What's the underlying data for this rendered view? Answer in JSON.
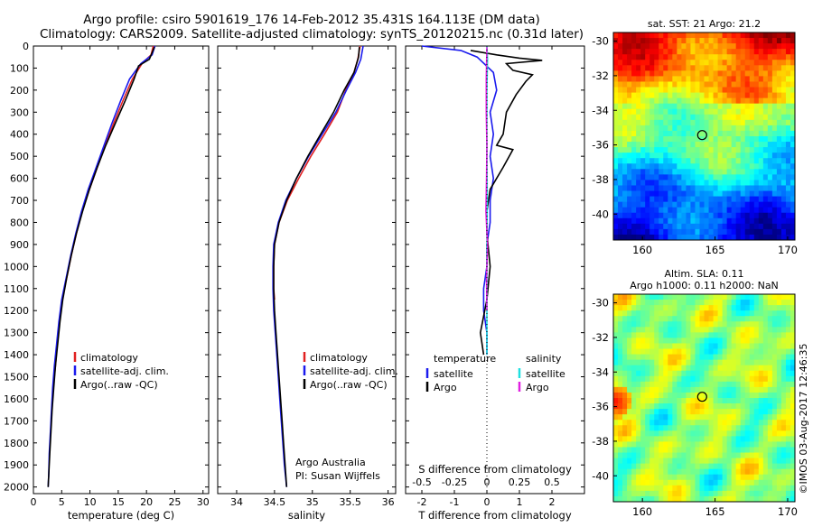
{
  "header": {
    "line1": "Argo profile: csiro 5901619_176 14-Feb-2012 35.431S 164.113E (DM data)",
    "line2": "Climatology: CARS2009. Satellite-adjusted climatology: synTS_20120215.nc (0.31d later)"
  },
  "side_text": "©IMOS 03-Aug-2017 12:46:35",
  "colors": {
    "climatology": "#e02020",
    "satellite": "#1a1aee",
    "argo": "#000000",
    "cyan": "#20e0e0",
    "magenta": "#e020e0"
  },
  "chart_data": [
    {
      "type": "line",
      "id": "temperature",
      "xlabel": "temperature (deg C)",
      "xlim": [
        0,
        31
      ],
      "xticks": [
        0,
        5,
        10,
        15,
        20,
        25,
        30
      ],
      "ylim": [
        0,
        2030
      ],
      "yticks": [
        0,
        100,
        200,
        300,
        400,
        500,
        600,
        700,
        800,
        900,
        1000,
        1100,
        1200,
        1300,
        1400,
        1500,
        1600,
        1700,
        1800,
        1900,
        2000
      ],
      "legend": [
        "climatology",
        "satellite-adj. clim.",
        "Argo(..raw -QC)"
      ],
      "series": [
        {
          "name": "climatology",
          "color": "#e02020",
          "points": [
            [
              21.2,
              0
            ],
            [
              20.8,
              40
            ],
            [
              19.2,
              80
            ],
            [
              17.5,
              150
            ],
            [
              15.8,
              250
            ],
            [
              14.2,
              350
            ],
            [
              12.7,
              450
            ],
            [
              11.3,
              550
            ],
            [
              9.9,
              650
            ],
            [
              8.6,
              750
            ],
            [
              7.6,
              850
            ],
            [
              6.7,
              950
            ],
            [
              5.9,
              1050
            ],
            [
              5.1,
              1150
            ],
            [
              4.6,
              1250
            ],
            [
              4.2,
              1350
            ],
            [
              3.9,
              1450
            ],
            [
              3.5,
              1550
            ]
          ]
        },
        {
          "name": "satellite-adj. clim.",
          "color": "#1a1aee",
          "points": [
            [
              21.5,
              0
            ],
            [
              21.0,
              40
            ],
            [
              19.0,
              80
            ],
            [
              17.0,
              150
            ],
            [
              15.4,
              250
            ],
            [
              13.9,
              350
            ],
            [
              12.5,
              450
            ],
            [
              11.1,
              550
            ],
            [
              9.7,
              650
            ],
            [
              8.5,
              750
            ],
            [
              7.5,
              850
            ],
            [
              6.6,
              950
            ],
            [
              5.8,
              1050
            ],
            [
              5.0,
              1150
            ],
            [
              4.5,
              1250
            ],
            [
              4.1,
              1350
            ],
            [
              3.7,
              1450
            ],
            [
              3.4,
              1550
            ],
            [
              3.2,
              1650
            ],
            [
              3.0,
              1750
            ],
            [
              2.8,
              1850
            ],
            [
              2.7,
              1950
            ],
            [
              2.6,
              2000
            ]
          ]
        },
        {
          "name": "Argo(..raw -QC)",
          "color": "#000000",
          "points": [
            [
              21.4,
              5
            ],
            [
              21.0,
              30
            ],
            [
              20.5,
              60
            ],
            [
              18.6,
              90
            ],
            [
              17.8,
              150
            ],
            [
              16.2,
              250
            ],
            [
              14.5,
              350
            ],
            [
              12.8,
              450
            ],
            [
              11.3,
              550
            ],
            [
              9.9,
              650
            ],
            [
              8.7,
              750
            ],
            [
              7.6,
              850
            ],
            [
              6.7,
              950
            ],
            [
              5.9,
              1050
            ],
            [
              5.2,
              1150
            ],
            [
              4.7,
              1250
            ],
            [
              4.3,
              1350
            ],
            [
              3.9,
              1450
            ],
            [
              3.6,
              1550
            ],
            [
              3.3,
              1650
            ],
            [
              3.1,
              1750
            ],
            [
              2.9,
              1850
            ],
            [
              2.7,
              1950
            ],
            [
              2.6,
              2000
            ]
          ]
        }
      ]
    },
    {
      "type": "line",
      "id": "salinity",
      "xlabel": "salinity",
      "xlim": [
        33.75,
        36.1
      ],
      "xticks": [
        34,
        34.5,
        35,
        35.5,
        36
      ],
      "ylim": [
        0,
        2030
      ],
      "legend": [
        "climatology",
        "satellite-adj. clim.",
        "Argo(..raw -QC)"
      ],
      "annotation": [
        "Argo Australia",
        "PI: Susan Wijffels"
      ],
      "series": [
        {
          "name": "climatology",
          "color": "#e02020",
          "points": [
            [
              35.63,
              0
            ],
            [
              35.6,
              60
            ],
            [
              35.55,
              120
            ],
            [
              35.44,
              200
            ],
            [
              35.33,
              300
            ],
            [
              35.16,
              400
            ],
            [
              34.98,
              500
            ],
            [
              34.82,
              600
            ],
            [
              34.67,
              700
            ],
            [
              34.56,
              800
            ],
            [
              34.5,
              900
            ],
            [
              34.49,
              1000
            ],
            [
              34.49,
              1100
            ],
            [
              34.5,
              1150
            ]
          ]
        },
        {
          "name": "satellite-adj. clim.",
          "color": "#1a1aee",
          "points": [
            [
              35.67,
              0
            ],
            [
              35.64,
              60
            ],
            [
              35.57,
              120
            ],
            [
              35.45,
              200
            ],
            [
              35.31,
              300
            ],
            [
              35.13,
              400
            ],
            [
              34.95,
              500
            ],
            [
              34.79,
              600
            ],
            [
              34.65,
              700
            ],
            [
              34.55,
              800
            ],
            [
              34.49,
              900
            ],
            [
              34.48,
              1000
            ],
            [
              34.48,
              1100
            ],
            [
              34.49,
              1200
            ],
            [
              34.51,
              1300
            ],
            [
              34.53,
              1400
            ],
            [
              34.55,
              1500
            ],
            [
              34.57,
              1600
            ],
            [
              34.59,
              1700
            ],
            [
              34.61,
              1800
            ],
            [
              34.63,
              1900
            ],
            [
              34.66,
              2000
            ]
          ]
        },
        {
          "name": "Argo(..raw -QC)",
          "color": "#000000",
          "points": [
            [
              35.62,
              5
            ],
            [
              35.61,
              50
            ],
            [
              35.55,
              120
            ],
            [
              35.42,
              200
            ],
            [
              35.28,
              300
            ],
            [
              35.11,
              400
            ],
            [
              34.94,
              500
            ],
            [
              34.79,
              600
            ],
            [
              34.66,
              700
            ],
            [
              34.56,
              800
            ],
            [
              34.5,
              900
            ],
            [
              34.49,
              1000
            ],
            [
              34.49,
              1100
            ],
            [
              34.5,
              1200
            ],
            [
              34.52,
              1300
            ],
            [
              34.54,
              1400
            ],
            [
              34.56,
              1500
            ],
            [
              34.58,
              1600
            ],
            [
              34.6,
              1700
            ],
            [
              34.62,
              1800
            ],
            [
              34.64,
              1900
            ],
            [
              34.66,
              2000
            ]
          ]
        }
      ]
    },
    {
      "type": "line",
      "id": "difference",
      "xlabel": "T difference from climatology",
      "xlabel2": "S difference from climatology",
      "xlim": [
        -2.5,
        3
      ],
      "xticks": [
        -2,
        -1,
        0,
        1,
        2
      ],
      "xticks2": [
        -0.5,
        -0.25,
        0,
        0.25,
        0.5
      ],
      "xticks2_labels": [
        "-0.5",
        "-0.25",
        "0",
        "0.25",
        "0.5"
      ],
      "ylim": [
        0,
        2030
      ],
      "legend_headers": [
        "temperature",
        "salinity"
      ],
      "legend": [
        "satellite",
        "Argo",
        "satellite",
        "Argo"
      ],
      "series": [
        {
          "name": "satellite",
          "color": "#1a1aee",
          "points": [
            [
              -2.0,
              0
            ],
            [
              -0.8,
              20
            ],
            [
              -0.3,
              50
            ],
            [
              0.2,
              120
            ],
            [
              0.3,
              200
            ],
            [
              0.1,
              300
            ],
            [
              0.2,
              400
            ],
            [
              0.1,
              500
            ],
            [
              0.2,
              600
            ],
            [
              0.1,
              700
            ],
            [
              0.1,
              800
            ],
            [
              0.0,
              900
            ],
            [
              0.0,
              1000
            ],
            [
              -0.1,
              1100
            ],
            [
              -0.1,
              1200
            ],
            [
              0.0,
              1300
            ],
            [
              0.0,
              1400
            ]
          ]
        },
        {
          "name": "Argo",
          "color": "#000000",
          "points": [
            [
              -0.5,
              20
            ],
            [
              0.3,
              40
            ],
            [
              1.0,
              55
            ],
            [
              1.7,
              65
            ],
            [
              0.6,
              80
            ],
            [
              0.8,
              110
            ],
            [
              1.4,
              130
            ],
            [
              1.2,
              160
            ],
            [
              0.9,
              220
            ],
            [
              0.6,
              300
            ],
            [
              0.5,
              400
            ],
            [
              0.3,
              450
            ],
            [
              0.8,
              470
            ],
            [
              0.5,
              550
            ],
            [
              0.1,
              650
            ],
            [
              0.0,
              750
            ],
            [
              0.0,
              850
            ],
            [
              0.1,
              1000
            ],
            [
              0.0,
              1150
            ],
            [
              -0.2,
              1300
            ],
            [
              -0.1,
              1400
            ]
          ]
        },
        {
          "name": "satellite",
          "color": "#20e0e0",
          "points": [
            [
              0.0,
              0
            ],
            [
              0.02,
              60
            ],
            [
              0.01,
              120
            ],
            [
              0.0,
              200
            ],
            [
              0.0,
              300
            ],
            [
              0.0,
              500
            ],
            [
              0.01,
              700
            ],
            [
              0.0,
              900
            ],
            [
              0.0,
              1100
            ],
            [
              0.0,
              1300
            ],
            [
              0.0,
              1400
            ]
          ]
        },
        {
          "name": "Argo",
          "color": "#e020e0",
          "points": [
            [
              0.0,
              5
            ],
            [
              -0.02,
              150
            ],
            [
              -0.02,
              300
            ],
            [
              0.0,
              450
            ],
            [
              -0.01,
              600
            ],
            [
              -0.03,
              750
            ],
            [
              0.02,
              900
            ],
            [
              -0.01,
              1050
            ],
            [
              0.0,
              1200
            ]
          ]
        }
      ]
    },
    {
      "type": "heatmap",
      "id": "sst",
      "title": "sat. SST: 21 Argo: 21.2",
      "xlim": [
        158,
        170.5
      ],
      "xticks": [
        160,
        165,
        170
      ],
      "ylim": [
        -41.5,
        -29.5
      ],
      "yticks": [
        -30,
        -32,
        -34,
        -36,
        -38,
        -40
      ],
      "ytick_labels": [
        "-30",
        "-32",
        "-34",
        "-36",
        "-38",
        "-40"
      ],
      "marker": {
        "lon": 164.113,
        "lat": -35.431
      },
      "colormap": "jet, warm in the north, cool in the south"
    },
    {
      "type": "heatmap",
      "id": "sla",
      "title": [
        "Altim. SLA: 0.11",
        "Argo h1000: 0.11 h2000: NaN"
      ],
      "xlim": [
        158,
        170.5
      ],
      "xticks": [
        160,
        165,
        170
      ],
      "ylim": [
        -41.5,
        -29.5
      ],
      "yticks": [
        -30,
        -32,
        -34,
        -36,
        -38,
        -40
      ],
      "ytick_labels": [
        "-30",
        "-32",
        "-34",
        "-36",
        "-38",
        "-40"
      ],
      "marker": {
        "lon": 164.113,
        "lat": -35.431
      },
      "colormap": "jet, mostly green"
    }
  ]
}
